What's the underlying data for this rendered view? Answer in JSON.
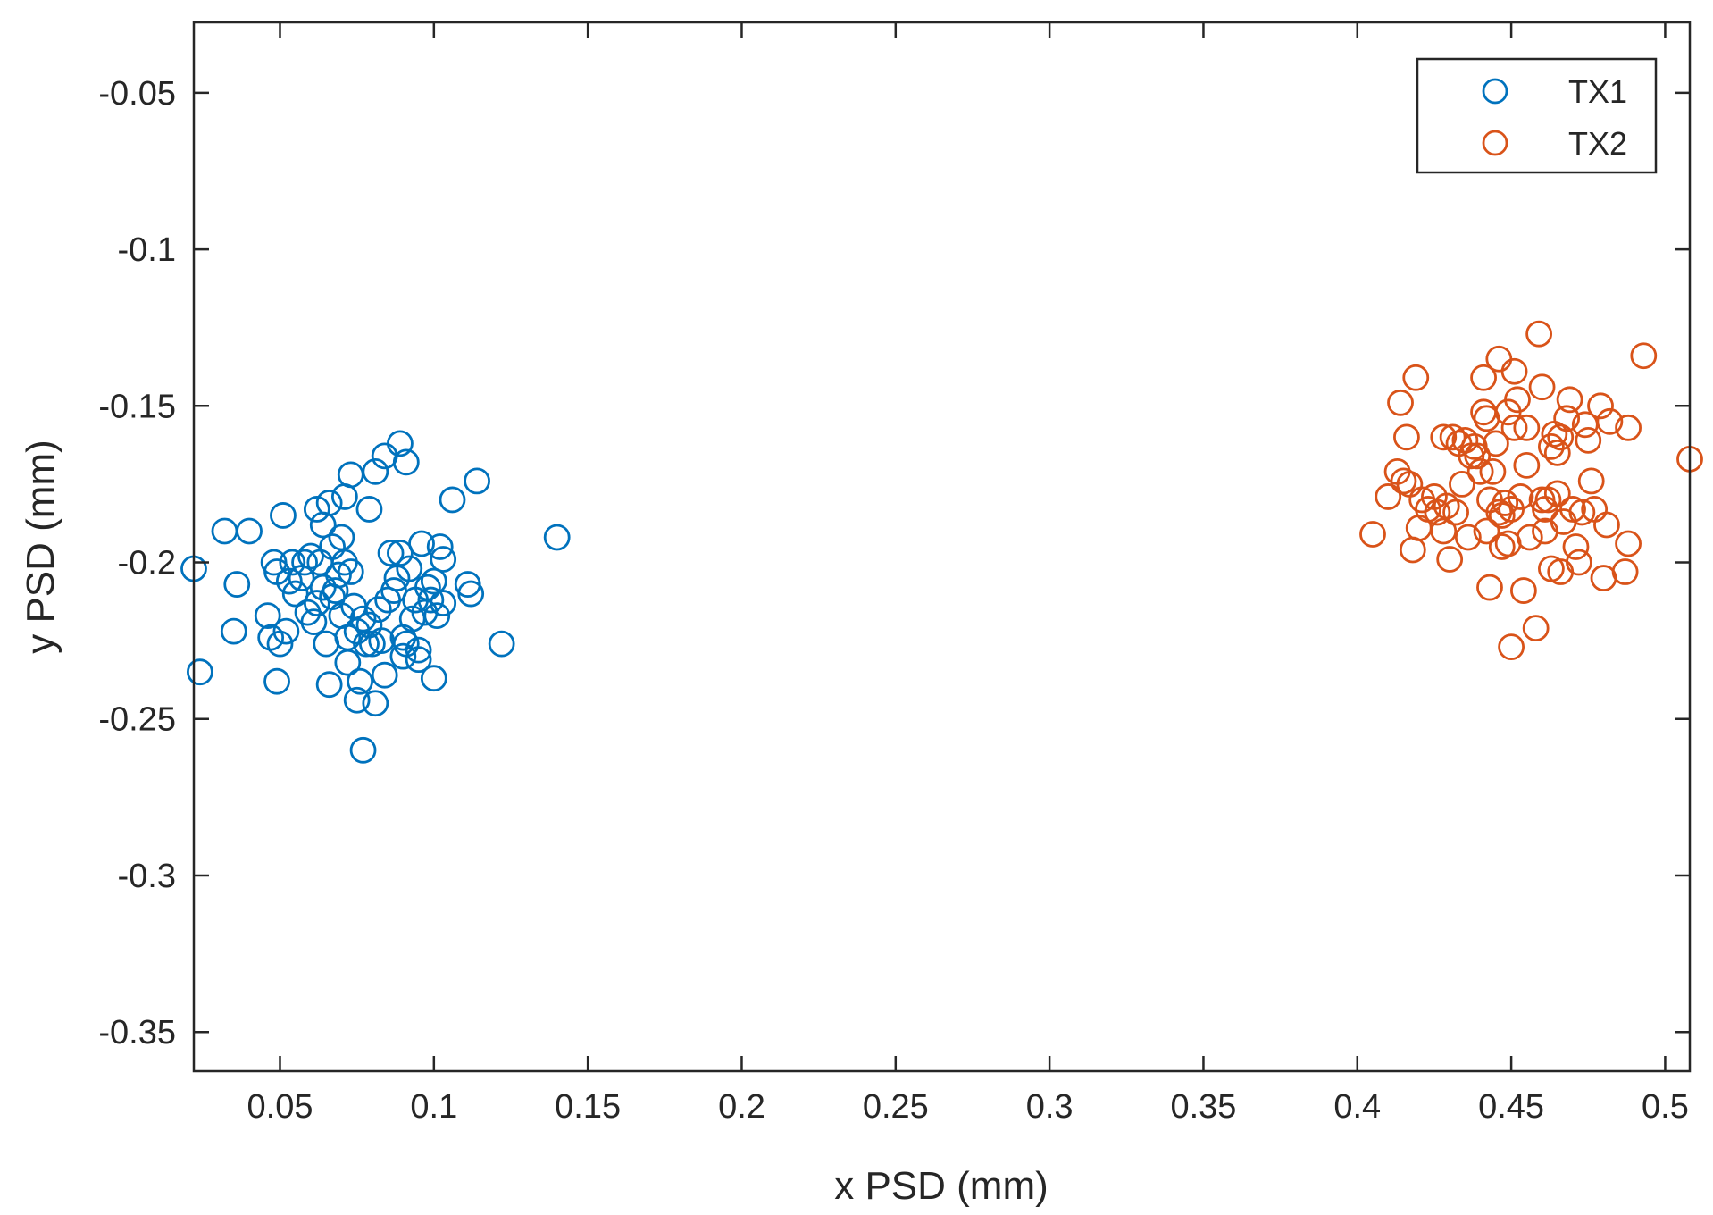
{
  "chart_data": {
    "type": "scatter",
    "title": "",
    "xlabel": "x PSD (mm)",
    "ylabel": "y PSD (mm)",
    "xlim": [
      0.022,
      0.508
    ],
    "ylim": [
      -0.3625,
      -0.0275
    ],
    "xticks": [
      0.05,
      0.1,
      0.15,
      0.2,
      0.25,
      0.3,
      0.35,
      0.4,
      0.45,
      0.5
    ],
    "xtick_labels": [
      "0.05",
      "0.1",
      "0.15",
      "0.2",
      "0.25",
      "0.3",
      "0.35",
      "0.4",
      "0.45",
      "0.5"
    ],
    "yticks": [
      -0.05,
      -0.1,
      -0.15,
      -0.2,
      -0.25,
      -0.3,
      -0.35
    ],
    "ytick_labels": [
      "-0.05",
      "-0.1",
      "-0.15",
      "-0.2",
      "-0.25",
      "-0.3",
      "-0.35"
    ],
    "grid": false,
    "legend_position": "top-right",
    "series": [
      {
        "name": "TX1",
        "color": "#0072BD",
        "marker": "circle-open",
        "points": [
          [
            0.022,
            -0.202
          ],
          [
            0.024,
            -0.235
          ],
          [
            0.032,
            -0.19
          ],
          [
            0.035,
            -0.222
          ],
          [
            0.036,
            -0.207
          ],
          [
            0.04,
            -0.19
          ],
          [
            0.046,
            -0.217
          ],
          [
            0.047,
            -0.224
          ],
          [
            0.048,
            -0.2
          ],
          [
            0.049,
            -0.238
          ],
          [
            0.049,
            -0.203
          ],
          [
            0.05,
            -0.226
          ],
          [
            0.051,
            -0.185
          ],
          [
            0.052,
            -0.222
          ],
          [
            0.053,
            -0.206
          ],
          [
            0.054,
            -0.2
          ],
          [
            0.055,
            -0.21
          ],
          [
            0.057,
            -0.205
          ],
          [
            0.058,
            -0.2
          ],
          [
            0.059,
            -0.216
          ],
          [
            0.06,
            -0.198
          ],
          [
            0.061,
            -0.219
          ],
          [
            0.062,
            -0.213
          ],
          [
            0.062,
            -0.183
          ],
          [
            0.063,
            -0.2
          ],
          [
            0.064,
            -0.188
          ],
          [
            0.064,
            -0.208
          ],
          [
            0.065,
            -0.226
          ],
          [
            0.066,
            -0.181
          ],
          [
            0.066,
            -0.239
          ],
          [
            0.067,
            -0.211
          ],
          [
            0.067,
            -0.195
          ],
          [
            0.068,
            -0.209
          ],
          [
            0.069,
            -0.204
          ],
          [
            0.07,
            -0.217
          ],
          [
            0.07,
            -0.192
          ],
          [
            0.071,
            -0.2
          ],
          [
            0.071,
            -0.179
          ],
          [
            0.072,
            -0.224
          ],
          [
            0.072,
            -0.232
          ],
          [
            0.073,
            -0.172
          ],
          [
            0.073,
            -0.203
          ],
          [
            0.074,
            -0.214
          ],
          [
            0.075,
            -0.222
          ],
          [
            0.075,
            -0.244
          ],
          [
            0.076,
            -0.238
          ],
          [
            0.077,
            -0.26
          ],
          [
            0.077,
            -0.218
          ],
          [
            0.078,
            -0.226
          ],
          [
            0.079,
            -0.183
          ],
          [
            0.079,
            -0.22
          ],
          [
            0.08,
            -0.226
          ],
          [
            0.081,
            -0.245
          ],
          [
            0.081,
            -0.171
          ],
          [
            0.082,
            -0.215
          ],
          [
            0.083,
            -0.225
          ],
          [
            0.084,
            -0.166
          ],
          [
            0.084,
            -0.236
          ],
          [
            0.085,
            -0.212
          ],
          [
            0.086,
            -0.197
          ],
          [
            0.087,
            -0.209
          ],
          [
            0.088,
            -0.205
          ],
          [
            0.089,
            -0.162
          ],
          [
            0.089,
            -0.197
          ],
          [
            0.09,
            -0.224
          ],
          [
            0.09,
            -0.23
          ],
          [
            0.091,
            -0.168
          ],
          [
            0.091,
            -0.226
          ],
          [
            0.092,
            -0.202
          ],
          [
            0.093,
            -0.218
          ],
          [
            0.094,
            -0.212
          ],
          [
            0.095,
            -0.228
          ],
          [
            0.095,
            -0.231
          ],
          [
            0.096,
            -0.194
          ],
          [
            0.097,
            -0.216
          ],
          [
            0.098,
            -0.208
          ],
          [
            0.099,
            -0.212
          ],
          [
            0.1,
            -0.237
          ],
          [
            0.1,
            -0.206
          ],
          [
            0.101,
            -0.217
          ],
          [
            0.102,
            -0.195
          ],
          [
            0.103,
            -0.199
          ],
          [
            0.103,
            -0.213
          ],
          [
            0.106,
            -0.18
          ],
          [
            0.111,
            -0.207
          ],
          [
            0.112,
            -0.21
          ],
          [
            0.114,
            -0.174
          ],
          [
            0.122,
            -0.226
          ],
          [
            0.14,
            -0.192
          ]
        ]
      },
      {
        "name": "TX2",
        "color": "#D95319",
        "marker": "circle-open",
        "points": [
          [
            0.405,
            -0.191
          ],
          [
            0.41,
            -0.179
          ],
          [
            0.413,
            -0.171
          ],
          [
            0.414,
            -0.149
          ],
          [
            0.415,
            -0.174
          ],
          [
            0.416,
            -0.16
          ],
          [
            0.417,
            -0.175
          ],
          [
            0.418,
            -0.196
          ],
          [
            0.419,
            -0.141
          ],
          [
            0.42,
            -0.189
          ],
          [
            0.421,
            -0.18
          ],
          [
            0.423,
            -0.183
          ],
          [
            0.425,
            -0.179
          ],
          [
            0.426,
            -0.184
          ],
          [
            0.428,
            -0.16
          ],
          [
            0.428,
            -0.19
          ],
          [
            0.429,
            -0.182
          ],
          [
            0.43,
            -0.199
          ],
          [
            0.431,
            -0.16
          ],
          [
            0.432,
            -0.184
          ],
          [
            0.433,
            -0.162
          ],
          [
            0.434,
            -0.175
          ],
          [
            0.435,
            -0.161
          ],
          [
            0.436,
            -0.192
          ],
          [
            0.437,
            -0.166
          ],
          [
            0.438,
            -0.163
          ],
          [
            0.439,
            -0.166
          ],
          [
            0.44,
            -0.171
          ],
          [
            0.441,
            -0.141
          ],
          [
            0.441,
            -0.152
          ],
          [
            0.442,
            -0.154
          ],
          [
            0.442,
            -0.19
          ],
          [
            0.443,
            -0.208
          ],
          [
            0.443,
            -0.18
          ],
          [
            0.444,
            -0.171
          ],
          [
            0.445,
            -0.162
          ],
          [
            0.446,
            -0.135
          ],
          [
            0.446,
            -0.184
          ],
          [
            0.447,
            -0.185
          ],
          [
            0.447,
            -0.195
          ],
          [
            0.448,
            -0.181
          ],
          [
            0.449,
            -0.152
          ],
          [
            0.449,
            -0.194
          ],
          [
            0.45,
            -0.227
          ],
          [
            0.45,
            -0.183
          ],
          [
            0.451,
            -0.139
          ],
          [
            0.451,
            -0.157
          ],
          [
            0.452,
            -0.148
          ],
          [
            0.453,
            -0.179
          ],
          [
            0.454,
            -0.209
          ],
          [
            0.455,
            -0.169
          ],
          [
            0.455,
            -0.157
          ],
          [
            0.456,
            -0.192
          ],
          [
            0.458,
            -0.221
          ],
          [
            0.459,
            -0.127
          ],
          [
            0.46,
            -0.144
          ],
          [
            0.46,
            -0.18
          ],
          [
            0.461,
            -0.19
          ],
          [
            0.461,
            -0.183
          ],
          [
            0.462,
            -0.18
          ],
          [
            0.463,
            -0.202
          ],
          [
            0.463,
            -0.163
          ],
          [
            0.464,
            -0.159
          ],
          [
            0.465,
            -0.165
          ],
          [
            0.465,
            -0.178
          ],
          [
            0.466,
            -0.203
          ],
          [
            0.466,
            -0.16
          ],
          [
            0.467,
            -0.187
          ],
          [
            0.468,
            -0.154
          ],
          [
            0.469,
            -0.148
          ],
          [
            0.47,
            -0.183
          ],
          [
            0.471,
            -0.195
          ],
          [
            0.472,
            -0.2
          ],
          [
            0.473,
            -0.184
          ],
          [
            0.474,
            -0.156
          ],
          [
            0.475,
            -0.161
          ],
          [
            0.476,
            -0.174
          ],
          [
            0.477,
            -0.183
          ],
          [
            0.479,
            -0.15
          ],
          [
            0.48,
            -0.205
          ],
          [
            0.481,
            -0.188
          ],
          [
            0.482,
            -0.155
          ],
          [
            0.487,
            -0.203
          ],
          [
            0.488,
            -0.157
          ],
          [
            0.488,
            -0.194
          ],
          [
            0.493,
            -0.134
          ],
          [
            0.508,
            -0.167
          ]
        ]
      }
    ]
  }
}
